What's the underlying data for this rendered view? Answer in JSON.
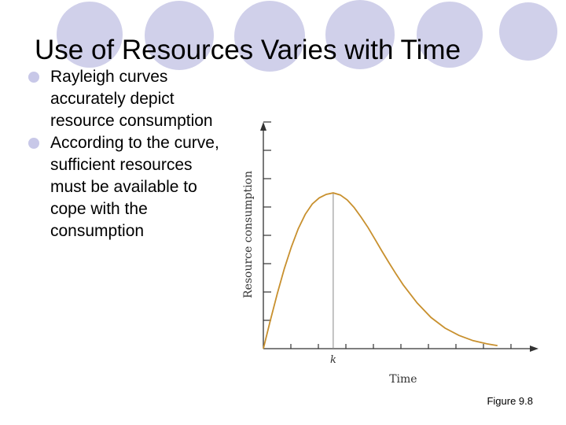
{
  "slide": {
    "title": "Use of Resources Varies with Time",
    "bullets": [
      "Rayleigh curves accurately depict resource consumption",
      "According to the curve, sufficient resources must be available to cope with the consumption"
    ],
    "caption": "Figure 9.8",
    "colors": {
      "circles": "#d0d0ea",
      "bullet": "#c8c8e8",
      "curve": "#c8902e",
      "axis": "#333333"
    }
  },
  "chart_data": {
    "type": "line",
    "title": "",
    "xlabel": "Time",
    "ylabel": "Resource consumption",
    "x_tick_labels": [
      "k"
    ],
    "k": 1,
    "xlim": [
      0,
      3.6
    ],
    "ylim": [
      0,
      1.24
    ],
    "series": [
      {
        "values_note": "",
        "x": [
          0,
          0.1,
          0.2,
          0.3,
          0.4,
          0.5,
          0.6,
          0.7,
          0.8,
          0.9,
          1.0,
          1.1,
          1.2,
          1.3,
          1.4,
          1.5,
          1.6,
          1.7,
          1.8,
          1.9,
          2.0,
          2.2,
          2.4,
          2.6,
          2.8,
          3.0,
          3.2,
          3.35
        ],
        "y": [
          0,
          0.165,
          0.322,
          0.467,
          0.593,
          0.7,
          0.784,
          0.844,
          0.88,
          0.9,
          0.909,
          0.897,
          0.868,
          0.823,
          0.767,
          0.706,
          0.637,
          0.567,
          0.5,
          0.435,
          0.373,
          0.267,
          0.182,
          0.12,
          0.077,
          0.047,
          0.028,
          0.018
        ]
      }
    ],
    "grid": false,
    "legend": "none"
  }
}
